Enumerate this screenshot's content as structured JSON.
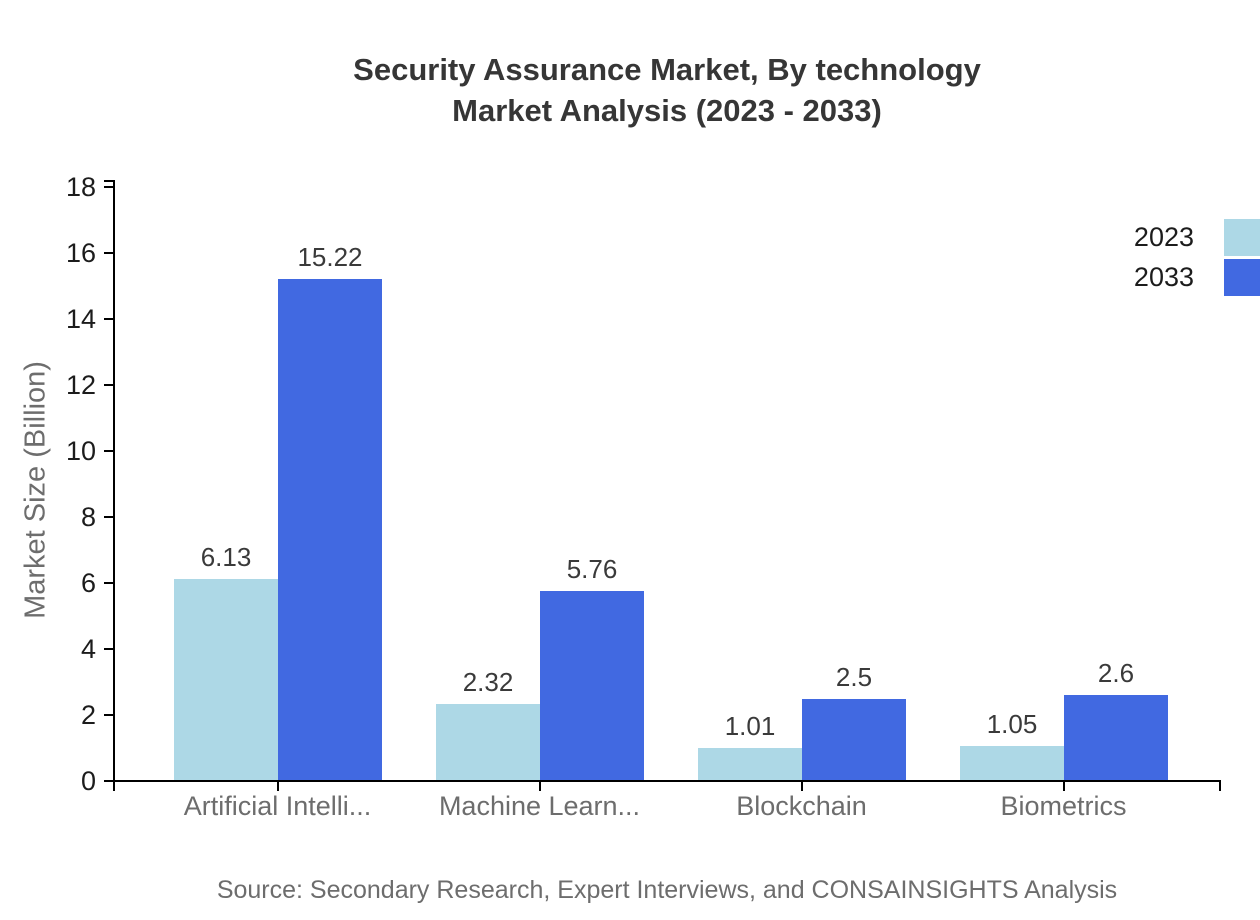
{
  "title": {
    "line1": "Security Assurance Market, By technology",
    "line2": "Market Analysis (2023 - 2033)"
  },
  "y_axis": {
    "label": "Market Size (Billion)"
  },
  "legend": {
    "items": [
      {
        "label": "2023",
        "color": "#ADD8E6"
      },
      {
        "label": "2033",
        "color": "#4169E1"
      }
    ]
  },
  "source": "Source: Secondary Research, Expert Interviews, and CONSAINSIGHTS Analysis",
  "chart_data": {
    "type": "bar",
    "title": "Security Assurance Market, By technology Market Analysis (2023 - 2033)",
    "categories": [
      "Artificial Intelli...",
      "Machine Learn...",
      "Blockchain",
      "Biometrics"
    ],
    "series": [
      {
        "name": "2023",
        "color": "#ADD8E6",
        "values": [
          6.13,
          2.32,
          1.01,
          1.05
        ]
      },
      {
        "name": "2033",
        "color": "#4169E1",
        "values": [
          15.22,
          5.76,
          2.5,
          2.6
        ]
      }
    ],
    "xlabel": "",
    "ylabel": "Market Size (Billion)",
    "ylim": [
      0,
      18
    ],
    "yticks": [
      0,
      2,
      4,
      6,
      8,
      10,
      12,
      14,
      16,
      18
    ],
    "grid": false,
    "legend_position": "top-right",
    "value_labels_shown": true,
    "axis_color": "#000000",
    "value_label_color": "#3a3a3a",
    "tick_label_color": "#1c1c1c",
    "category_label_color": "#6d6d6d"
  }
}
